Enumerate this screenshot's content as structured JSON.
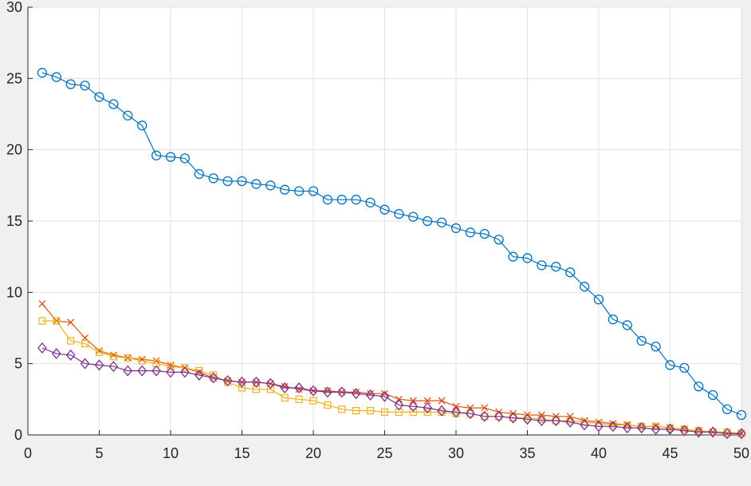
{
  "chart_data": {
    "type": "line",
    "title": "",
    "xlabel": "",
    "ylabel": "",
    "xlim": [
      0,
      50
    ],
    "ylim": [
      0,
      30
    ],
    "xticks": [
      0,
      5,
      10,
      15,
      20,
      25,
      30,
      35,
      40,
      45,
      50
    ],
    "yticks": [
      0,
      5,
      10,
      15,
      20,
      25,
      30
    ],
    "grid": true,
    "x": [
      1,
      2,
      3,
      4,
      5,
      6,
      7,
      8,
      9,
      10,
      11,
      12,
      13,
      14,
      15,
      16,
      17,
      18,
      19,
      20,
      21,
      22,
      23,
      24,
      25,
      26,
      27,
      28,
      29,
      30,
      31,
      32,
      33,
      34,
      35,
      36,
      37,
      38,
      39,
      40,
      41,
      42,
      43,
      44,
      45,
      46,
      47,
      48,
      49,
      50
    ],
    "series": [
      {
        "color": "#0072BD",
        "marker": "circle",
        "values": [
          25.4,
          25.1,
          24.6,
          24.5,
          23.7,
          23.2,
          22.4,
          21.7,
          19.6,
          19.5,
          19.4,
          18.3,
          18.0,
          17.8,
          17.8,
          17.6,
          17.5,
          17.2,
          17.1,
          17.1,
          16.5,
          16.5,
          16.5,
          16.3,
          15.8,
          15.5,
          15.3,
          15.0,
          14.9,
          14.5,
          14.2,
          14.1,
          13.7,
          12.5,
          12.4,
          11.9,
          11.8,
          11.4,
          10.4,
          9.5,
          8.1,
          7.7,
          6.6,
          6.2,
          4.9,
          4.7,
          3.4,
          2.8,
          1.8,
          1.4
        ]
      },
      {
        "color": "#D95319",
        "marker": "x",
        "values": [
          9.2,
          8.0,
          7.9,
          6.8,
          5.9,
          5.6,
          5.4,
          5.3,
          5.2,
          4.9,
          4.7,
          4.4,
          4.0,
          3.8,
          3.7,
          3.7,
          3.6,
          3.4,
          3.2,
          3.1,
          3.1,
          3.0,
          3.0,
          2.9,
          2.9,
          2.5,
          2.4,
          2.4,
          2.4,
          2.0,
          1.9,
          1.9,
          1.6,
          1.5,
          1.4,
          1.4,
          1.3,
          1.3,
          1.0,
          0.9,
          0.8,
          0.7,
          0.6,
          0.6,
          0.5,
          0.4,
          0.3,
          0.2,
          0.1,
          0.1
        ]
      },
      {
        "color": "#EDB120",
        "marker": "square",
        "values": [
          8.0,
          8.0,
          6.6,
          6.4,
          5.8,
          5.5,
          5.4,
          5.2,
          5.0,
          4.8,
          4.7,
          4.5,
          4.2,
          3.7,
          3.3,
          3.2,
          3.2,
          2.6,
          2.5,
          2.4,
          2.1,
          1.8,
          1.7,
          1.7,
          1.6,
          1.6,
          1.6,
          1.6,
          1.6,
          1.5,
          1.5,
          1.3,
          1.3,
          1.2,
          1.2,
          1.1,
          1.0,
          1.0,
          0.9,
          0.8,
          0.7,
          0.7,
          0.6,
          0.6,
          0.5,
          0.4,
          0.3,
          0.2,
          0.2,
          0.1
        ]
      },
      {
        "color": "#7E2F8E",
        "marker": "diamond",
        "values": [
          6.1,
          5.7,
          5.6,
          5.0,
          4.9,
          4.8,
          4.5,
          4.5,
          4.5,
          4.4,
          4.4,
          4.2,
          4.0,
          3.8,
          3.7,
          3.7,
          3.6,
          3.3,
          3.3,
          3.1,
          3.0,
          3.0,
          2.9,
          2.8,
          2.7,
          2.1,
          2.0,
          1.9,
          1.7,
          1.6,
          1.5,
          1.3,
          1.3,
          1.2,
          1.1,
          1.0,
          1.0,
          0.9,
          0.7,
          0.6,
          0.6,
          0.5,
          0.5,
          0.4,
          0.4,
          0.3,
          0.2,
          0.2,
          0.1,
          0.1
        ]
      }
    ]
  }
}
